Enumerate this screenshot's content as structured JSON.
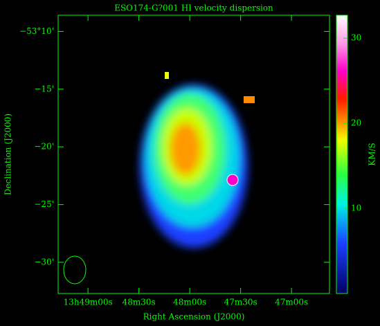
{
  "chart_data": {
    "type": "image",
    "title": "ESO174-G?001  HI velocity dispersion",
    "x_label": "Right Ascension (J2000)",
    "y_label": "Declination (J2000)",
    "xlim": [
      49757.6,
      49597.6
    ],
    "xticks": [
      {
        "value": 49740,
        "label": "13h49m00s"
      },
      {
        "value": 49710,
        "label": "48m30s"
      },
      {
        "value": 49680,
        "label": "48m00s"
      },
      {
        "value": 49650,
        "label": "47m30s"
      },
      {
        "value": 49620,
        "label": "47m00s"
      }
    ],
    "ylim": [
      -53.545,
      -53.1433
    ],
    "yticks": [
      {
        "value": -53.1667,
        "label": "−53°10'"
      },
      {
        "value": -53.25,
        "label": "−15'"
      },
      {
        "value": -53.3333,
        "label": "−20'"
      },
      {
        "value": -53.4167,
        "label": "−25'"
      },
      {
        "value": -53.5,
        "label": "−30'"
      }
    ],
    "axis_color": "#00ff00",
    "colorbar": {
      "label": "KM/S",
      "ylim": [
        0,
        32.7
      ],
      "yticks": [
        10,
        20,
        30
      ]
    }
  }
}
